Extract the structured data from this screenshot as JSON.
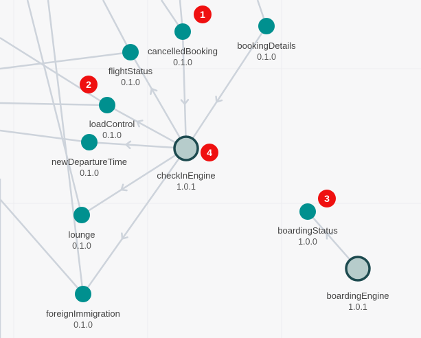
{
  "colors": {
    "node": "#00908f",
    "engine_ring": "#1d4a4f",
    "engine_fill": "#b6cccb",
    "edge": "#cdd3db",
    "badge": "#ef1010",
    "background": "#f7f7f8"
  },
  "nodes": [
    {
      "id": "cancelledBooking",
      "name": "cancelledBooking",
      "version": "0.1.0",
      "type": "service"
    },
    {
      "id": "bookingDetails",
      "name": "bookingDetails",
      "version": "0.1.0",
      "type": "service"
    },
    {
      "id": "flightStatus",
      "name": "flightStatus",
      "version": "0.1.0",
      "type": "service"
    },
    {
      "id": "loadControl",
      "name": "loadControl",
      "version": "0.1.0",
      "type": "service"
    },
    {
      "id": "newDepartureTime",
      "name": "newDepartureTime",
      "version": "0.1.0",
      "type": "service"
    },
    {
      "id": "checkInEngine",
      "name": "checkInEngine",
      "version": "1.0.1",
      "type": "engine"
    },
    {
      "id": "lounge",
      "name": "lounge",
      "version": "0.1.0",
      "type": "service"
    },
    {
      "id": "foreignImmigration",
      "name": "foreignImmigration",
      "version": "0.1.0",
      "type": "service"
    },
    {
      "id": "boardingStatus",
      "name": "boardingStatus",
      "version": "1.0.0",
      "type": "service"
    },
    {
      "id": "boardingEngine",
      "name": "boardingEngine",
      "version": "1.0.1",
      "type": "engine"
    }
  ],
  "badges": [
    {
      "number": "1",
      "node": "cancelledBooking"
    },
    {
      "number": "2",
      "node": "loadControl"
    },
    {
      "number": "3",
      "node": "boardingStatus"
    },
    {
      "number": "4",
      "node": "checkInEngine"
    }
  ],
  "edges": [
    {
      "from": "cancelledBooking",
      "to": "checkInEngine"
    },
    {
      "from": "bookingDetails",
      "to": "checkInEngine"
    },
    {
      "from": "checkInEngine",
      "to": "flightStatus"
    },
    {
      "from": "checkInEngine",
      "to": "loadControl"
    },
    {
      "from": "checkInEngine",
      "to": "newDepartureTime"
    },
    {
      "from": "checkInEngine",
      "to": "lounge"
    },
    {
      "from": "checkInEngine",
      "to": "foreignImmigration"
    },
    {
      "from": "boardingEngine",
      "to": "boardingStatus"
    }
  ]
}
